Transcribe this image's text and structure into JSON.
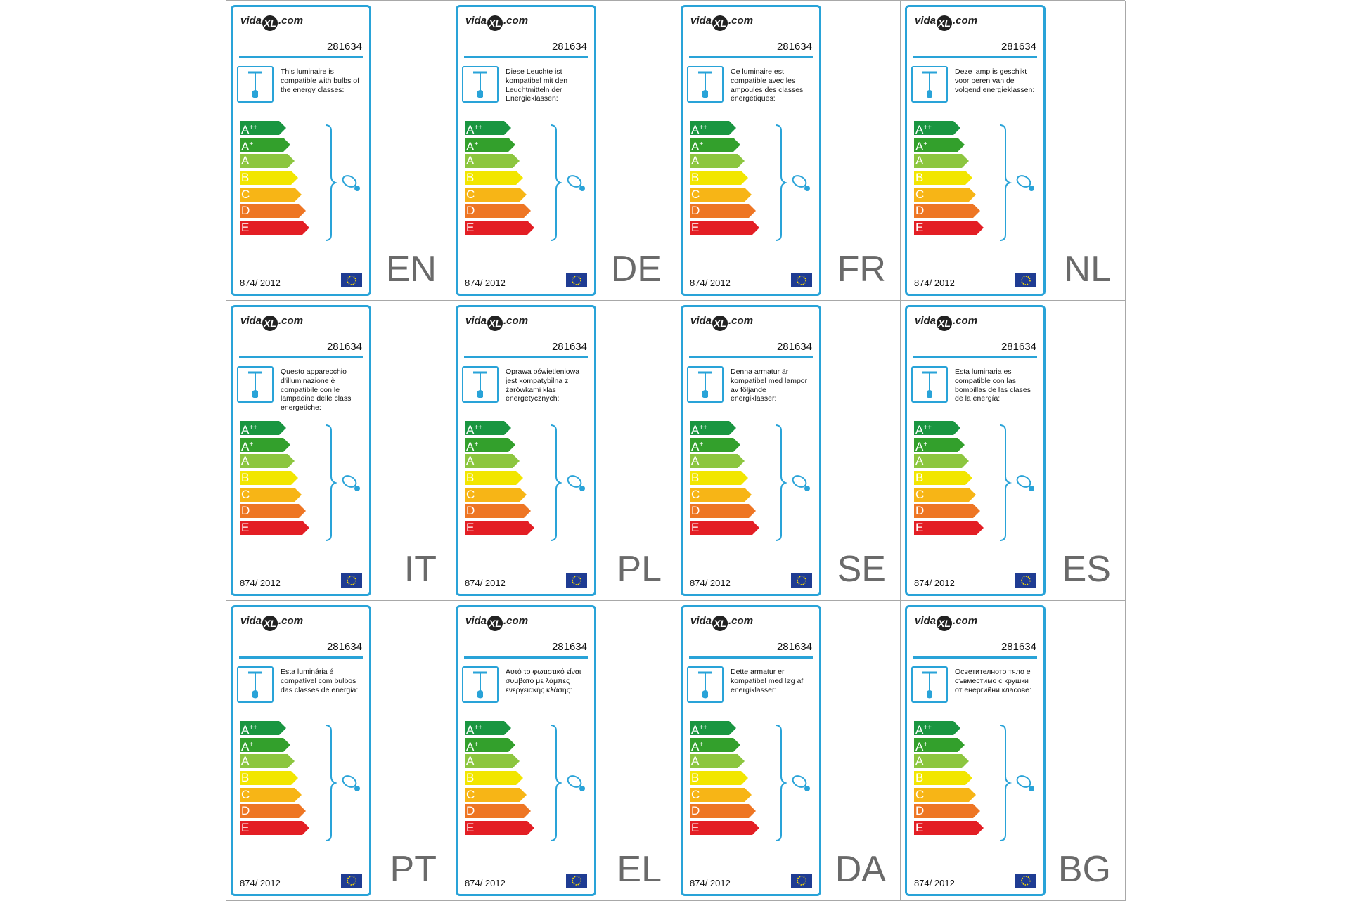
{
  "brand": {
    "name_left": "vida",
    "name_mark": "XL",
    "name_right": ".com"
  },
  "model_number": "281634",
  "regulation": "874/ 2012",
  "energy_classes": [
    {
      "letter": "A",
      "sup": "++",
      "color": "#1a9641"
    },
    {
      "letter": "A",
      "sup": "+",
      "color": "#33a02c"
    },
    {
      "letter": "A",
      "sup": "",
      "color": "#8cc63f"
    },
    {
      "letter": "B",
      "sup": "",
      "color": "#f2e600"
    },
    {
      "letter": "C",
      "sup": "",
      "color": "#f7b516"
    },
    {
      "letter": "D",
      "sup": "",
      "color": "#ee7624"
    },
    {
      "letter": "E",
      "sup": "",
      "color": "#e31e24"
    }
  ],
  "labels": [
    {
      "lang": "EN",
      "text": "This luminaire is compatible with bulbs of the energy classes:"
    },
    {
      "lang": "DE",
      "text": "Diese Leuchte ist kompatibel mit den Leuchtmitteln der Energieklassen:"
    },
    {
      "lang": "FR",
      "text": "Ce luminaire est compatible avec les ampoules des classes énergétiques:"
    },
    {
      "lang": "NL",
      "text": "Deze lamp is geschikt voor peren van de volgend energieklassen:"
    },
    {
      "lang": "IT",
      "text": "Questo apparecchio d'illuminazione è compatibile con le lampadine delle classi energetiche:"
    },
    {
      "lang": "PL",
      "text": "Oprawa oświetleniowa jest kompatybilna z żarówkami klas energetycznych:"
    },
    {
      "lang": "SE",
      "text": "Denna armatur är kompatibel med lampor av följande energiklasser:"
    },
    {
      "lang": "ES",
      "text": "Esta luminaria es compatible con las bombillas de las clases de la energía:"
    },
    {
      "lang": "PT",
      "text": "Esta luminária é compatível com bulbos das classes de energia:"
    },
    {
      "lang": "EL",
      "text": "Αυτό το φωτιστικό είναι συμβατό με λάμπες ενεργειακής κλάσης:"
    },
    {
      "lang": "DA",
      "text": "Dette armatur er kompatibel med løg af energiklasser:"
    },
    {
      "lang": "BG",
      "text": "Осветителното тяло е съвместимо с крушки от енергийни класове:"
    }
  ],
  "colors": {
    "accent": "#29a3d8",
    "grid_line": "#a8a8a8",
    "lang_text": "#6a6a6a",
    "eu_blue": "#1f3c93",
    "eu_star": "#ffdd00"
  },
  "icons": [
    "pendant-lamp-icon",
    "bulb-icon",
    "eu-flag-icon"
  ]
}
